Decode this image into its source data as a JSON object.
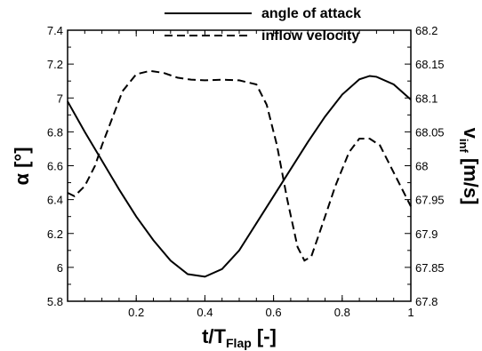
{
  "chart_data": {
    "type": "line",
    "title": "",
    "xlabel": {
      "main": "t/T",
      "sub": "Flap",
      "unit": " [-]"
    },
    "ylabel_left": {
      "main": "α",
      "unit": " [°]"
    },
    "ylabel_right": {
      "main": "v",
      "sub": "inf",
      "unit": " [m/s]"
    },
    "xlim": [
      0,
      1
    ],
    "ylim_left": [
      5.8,
      7.4
    ],
    "ylim_right": [
      67.8,
      68.2
    ],
    "x_ticks": [
      "0.2",
      "0.4",
      "0.6",
      "0.8",
      "1"
    ],
    "y_left_ticks": [
      "5.8",
      "6",
      "6.2",
      "6.4",
      "6.6",
      "6.8",
      "7",
      "7.2",
      "7.4"
    ],
    "y_right_ticks": [
      "67.8",
      "67.85",
      "67.9",
      "67.95",
      "68",
      "68.05",
      "68.1",
      "68.15",
      "68.2"
    ],
    "grid": false,
    "legend_position": "top-right",
    "series": [
      {
        "name": "angle of attack",
        "axis": "left",
        "style": "solid",
        "color": "#000000",
        "x": [
          0,
          0.05,
          0.1,
          0.15,
          0.2,
          0.25,
          0.3,
          0.35,
          0.4,
          0.45,
          0.5,
          0.55,
          0.6,
          0.65,
          0.7,
          0.75,
          0.8,
          0.85,
          0.88,
          0.9,
          0.95,
          1
        ],
        "y": [
          6.98,
          6.8,
          6.63,
          6.46,
          6.3,
          6.16,
          6.04,
          5.96,
          5.945,
          5.99,
          6.1,
          6.26,
          6.42,
          6.58,
          6.74,
          6.89,
          7.02,
          7.11,
          7.13,
          7.125,
          7.08,
          6.99
        ]
      },
      {
        "name": "inflow velocity",
        "axis": "right",
        "style": "dashed",
        "color": "#000000",
        "x": [
          0,
          0.02,
          0.05,
          0.08,
          0.1,
          0.13,
          0.16,
          0.2,
          0.24,
          0.28,
          0.32,
          0.36,
          0.4,
          0.45,
          0.5,
          0.55,
          0.58,
          0.61,
          0.64,
          0.67,
          0.69,
          0.71,
          0.74,
          0.78,
          0.82,
          0.85,
          0.88,
          0.91,
          0.94,
          0.97,
          1
        ],
        "y": [
          67.96,
          67.955,
          67.97,
          68.0,
          68.03,
          68.07,
          68.11,
          68.135,
          68.14,
          68.137,
          68.13,
          68.127,
          68.126,
          68.127,
          68.126,
          68.12,
          68.09,
          68.03,
          67.95,
          67.88,
          67.86,
          67.866,
          67.91,
          67.97,
          68.02,
          68.04,
          68.04,
          68.03,
          68.0,
          67.97,
          67.94
        ]
      }
    ]
  }
}
